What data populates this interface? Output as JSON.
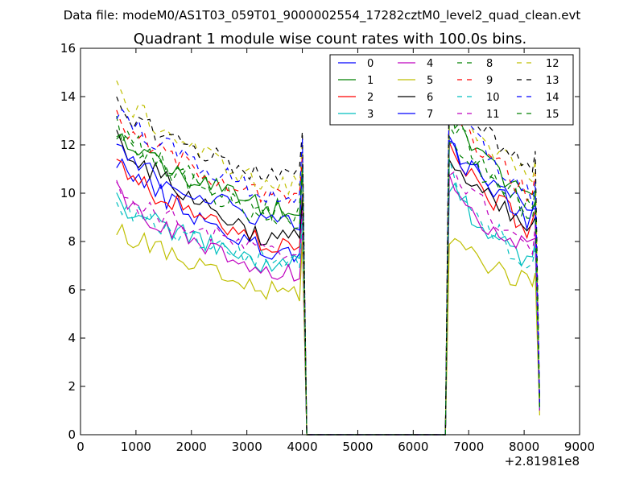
{
  "figure": {
    "suptitle": "Data file: modeM0/AS1T03_059T01_9000002554_17282cztM0_level2_quad_clean.evt",
    "title": "Quadrant 1 module wise count rates with 100.0s bins.",
    "x_offset_label": "+2.81981e8"
  },
  "chart_data": {
    "type": "line",
    "title": "Quadrant 1 module wise count rates with 100.0s bins.",
    "xlabel": "",
    "ylabel": "",
    "x_offset": "+2.81981e8",
    "xlim": [
      0,
      9000
    ],
    "ylim": [
      0,
      16
    ],
    "xticks": [
      0,
      1000,
      2000,
      3000,
      4000,
      5000,
      6000,
      7000,
      8000,
      9000
    ],
    "yticks": [
      0,
      2,
      4,
      6,
      8,
      10,
      12,
      14,
      16
    ],
    "grid": false,
    "legend": {
      "position": "top-right",
      "columns": 4
    },
    "segments": {
      "seg1_x": [
        650,
        750,
        850,
        950,
        1050,
        1150,
        1250,
        1350,
        1450,
        1550,
        1650,
        1750,
        1850,
        1950,
        2050,
        2150,
        2250,
        2350,
        2450,
        2550,
        2650,
        2750,
        2850,
        2950,
        3050,
        3150,
        3250,
        3350,
        3450,
        3550,
        3650,
        3750,
        3850,
        3950,
        4000,
        4080
      ],
      "gap_x": [
        4150,
        6580
      ],
      "seg2_x": [
        6650,
        6750,
        6850,
        6950,
        7050,
        7150,
        7250,
        7350,
        7450,
        7550,
        7650,
        7750,
        7850,
        7950,
        8050,
        8150,
        8200,
        8280
      ]
    },
    "series": [
      {
        "name": "0",
        "color": "#0000ff",
        "dash": "solid",
        "a": 11.5,
        "b": 7.6,
        "c": 12.3,
        "d": 9.3,
        "end": 1.2
      },
      {
        "name": "1",
        "color": "#008000",
        "dash": "solid",
        "a": 12.5,
        "b": 9.4,
        "c": 13.6,
        "d": 9.8,
        "end": 1.2
      },
      {
        "name": "2",
        "color": "#ff0000",
        "dash": "solid",
        "a": 11.2,
        "b": 7.9,
        "c": 11.8,
        "d": 8.6,
        "end": 1.2
      },
      {
        "name": "3",
        "color": "#00bfbf",
        "dash": "solid",
        "a": 9.8,
        "b": 7.0,
        "c": 10.3,
        "d": 7.3,
        "end": 1.0
      },
      {
        "name": "4",
        "color": "#bf00bf",
        "dash": "solid",
        "a": 10.1,
        "b": 6.6,
        "c": 10.3,
        "d": 7.6,
        "end": 1.0
      },
      {
        "name": "5",
        "color": "#bfbf00",
        "dash": "solid",
        "a": 8.7,
        "b": 5.9,
        "c": 8.2,
        "d": 6.3,
        "end": 0.8
      },
      {
        "name": "6",
        "color": "#000000",
        "dash": "solid",
        "a": 12.4,
        "b": 8.1,
        "c": 11.4,
        "d": 8.5,
        "end": 1.1
      },
      {
        "name": "7",
        "color": "#0000ff",
        "dash": "solid",
        "a": 11.8,
        "b": 8.9,
        "c": 12.0,
        "d": 9.0,
        "end": 1.2
      },
      {
        "name": "8",
        "color": "#008000",
        "dash": "dashed",
        "a": 12.8,
        "b": 9.3,
        "c": 13.2,
        "d": 9.3,
        "end": 1.2
      },
      {
        "name": "9",
        "color": "#ff0000",
        "dash": "dashed",
        "a": 13.0,
        "b": 9.8,
        "c": 13.7,
        "d": 10.0,
        "end": 1.3
      },
      {
        "name": "10",
        "color": "#00bfbf",
        "dash": "dashed",
        "a": 9.6,
        "b": 7.2,
        "c": 11.0,
        "d": 7.1,
        "end": 1.0
      },
      {
        "name": "11",
        "color": "#bf00bf",
        "dash": "dashed",
        "a": 10.2,
        "b": 7.5,
        "c": 11.2,
        "d": 7.8,
        "end": 1.0
      },
      {
        "name": "12",
        "color": "#bfbf00",
        "dash": "dashed",
        "a": 14.3,
        "b": 10.3,
        "c": 14.3,
        "d": 10.5,
        "end": 1.4
      },
      {
        "name": "13",
        "color": "#000000",
        "dash": "dashed",
        "a": 13.7,
        "b": 10.7,
        "c": 14.6,
        "d": 11.1,
        "end": 1.3
      },
      {
        "name": "14",
        "color": "#0000ff",
        "dash": "dashed",
        "a": 13.5,
        "b": 9.9,
        "c": 14.0,
        "d": 9.9,
        "end": 1.3
      },
      {
        "name": "15",
        "color": "#008000",
        "dash": "dashed",
        "a": 12.6,
        "b": 8.9,
        "c": 12.6,
        "d": 9.3,
        "end": 1.2
      }
    ]
  }
}
